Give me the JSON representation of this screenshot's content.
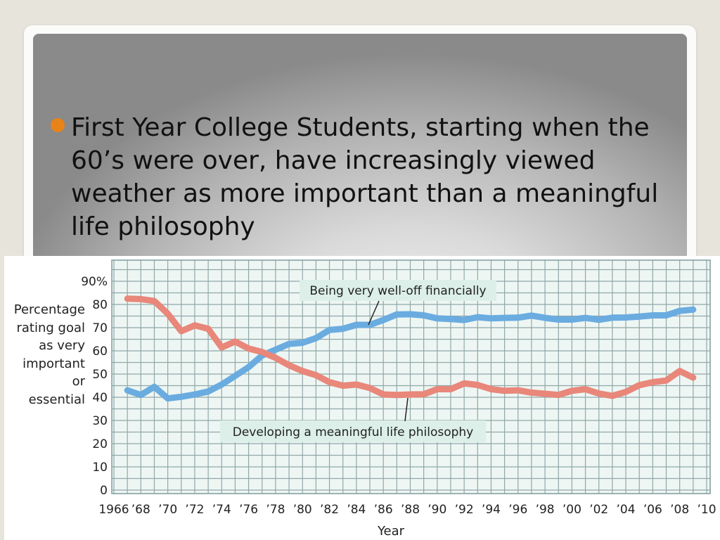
{
  "slide": {
    "bullet_text": "First Year College Students, starting when the 60’s were over, have increasingly viewed weather as more important than a meaningful life philosophy"
  },
  "colors": {
    "bullet": "#e8831a",
    "financial_series": "#6aace0",
    "philosophy_series": "#e8877a",
    "grid": "#8fa8a8",
    "plot_background": "#eef6f3"
  },
  "chart_data": {
    "type": "line",
    "xlabel": "Year",
    "ylabel_lines": [
      "Percentage",
      "rating goal",
      "as very",
      "important",
      "or",
      "essential"
    ],
    "ylim": [
      0,
      90
    ],
    "yticks": [
      0,
      10,
      20,
      30,
      40,
      50,
      60,
      70,
      80,
      90
    ],
    "ytick_labels": [
      "0",
      "10",
      "20",
      "30",
      "40",
      "50",
      "60",
      "70",
      "80",
      "90%"
    ],
    "xlim": [
      1966,
      2010
    ],
    "xticks": [
      1966,
      1968,
      1970,
      1972,
      1974,
      1976,
      1978,
      1980,
      1982,
      1984,
      1986,
      1988,
      1990,
      1992,
      1994,
      1996,
      1998,
      2000,
      2002,
      2004,
      2006,
      2008,
      2010
    ],
    "xtick_labels": [
      "1966",
      "’68",
      "’70",
      "’72",
      "’74",
      "’76",
      "’78",
      "’80",
      "’82",
      "’84",
      "’86",
      "’88",
      "’90",
      "’92",
      "’94",
      "’96",
      "’98",
      "’00",
      "’02",
      "’04",
      "’06",
      "’08",
      "’10"
    ],
    "grid": true,
    "series": [
      {
        "name": "Being very well-off financially",
        "color": "#6aace0",
        "x": [
          1967,
          1968,
          1969,
          1970,
          1971,
          1972,
          1973,
          1974,
          1975,
          1976,
          1977,
          1978,
          1979,
          1980,
          1981,
          1982,
          1983,
          1984,
          1985,
          1986,
          1987,
          1988,
          1989,
          1990,
          1991,
          1992,
          1993,
          1994,
          1995,
          1996,
          1997,
          1998,
          1999,
          2000,
          2001,
          2002,
          2003,
          2004,
          2005,
          2006,
          2007,
          2008,
          2009
        ],
        "y": [
          43,
          41,
          44.5,
          39.5,
          40.2,
          41.2,
          42.5,
          45.5,
          49.2,
          53,
          58,
          60.5,
          63,
          63.5,
          65.5,
          69,
          69.5,
          71.2,
          71.2,
          73.3,
          75.7,
          75.8,
          75.3,
          74,
          73.7,
          73.3,
          74.5,
          74,
          74.2,
          74.3,
          75.2,
          74.2,
          73.5,
          73.5,
          74.2,
          73.4,
          74.3,
          74.4,
          74.8,
          75.3,
          75.3,
          77.2,
          77.8
        ]
      },
      {
        "name": "Developing a meaningful life philosophy",
        "color": "#e8877a",
        "x": [
          1967,
          1968,
          1969,
          1970,
          1971,
          1972,
          1973,
          1974,
          1975,
          1976,
          1977,
          1978,
          1979,
          1980,
          1981,
          1982,
          1983,
          1984,
          1985,
          1986,
          1987,
          1988,
          1989,
          1990,
          1991,
          1992,
          1993,
          1994,
          1995,
          1996,
          1997,
          1998,
          1999,
          2000,
          2001,
          2002,
          2003,
          2004,
          2005,
          2006,
          2007,
          2008,
          2009
        ],
        "y": [
          82.5,
          82.3,
          81.5,
          76,
          68.5,
          71,
          69.5,
          61.5,
          64,
          61,
          59.5,
          57,
          53.8,
          51.3,
          49.5,
          46.5,
          45,
          45.5,
          44,
          41.2,
          41,
          41.2,
          41.3,
          43.5,
          43.5,
          46,
          45.3,
          43.5,
          42.8,
          43,
          42,
          41.5,
          41,
          42.8,
          43.5,
          41.6,
          40.6,
          42.3,
          45.2,
          46.5,
          47.2,
          51.3,
          48.5
        ]
      }
    ],
    "annotations": [
      {
        "text": "Being very well-off financially",
        "series": 0
      },
      {
        "text": "Developing a meaningful life philosophy",
        "series": 1
      }
    ]
  }
}
